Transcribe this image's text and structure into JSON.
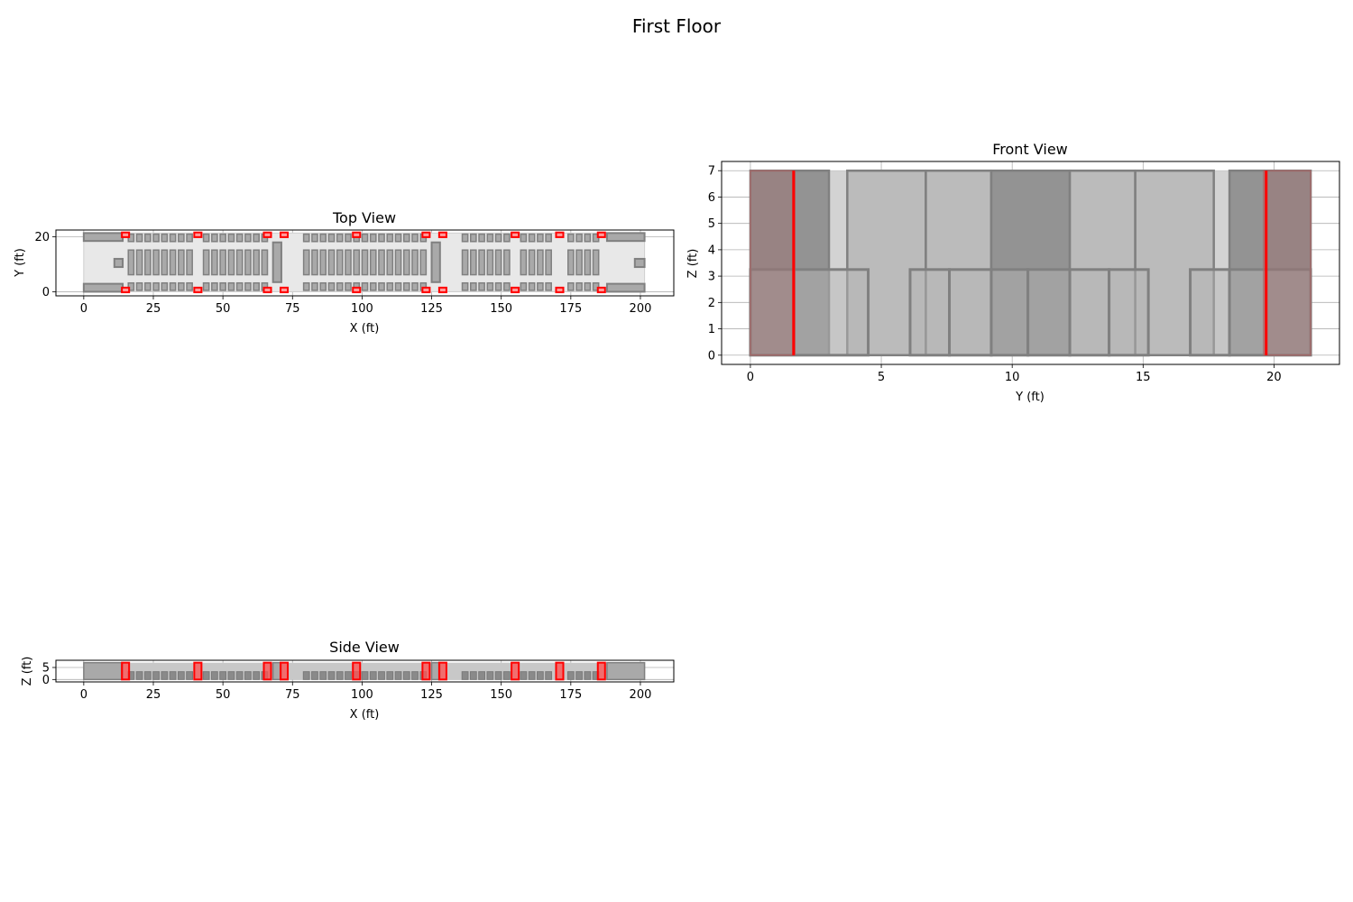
{
  "figure": {
    "title": "First Floor"
  },
  "colors": {
    "seat_fill": "#a9a9a9",
    "seat_edge": "#808080",
    "door": "#ff0000",
    "cabin_fill": "#e8e8e8",
    "front_light": "#d3d3d3",
    "front_mid": "#b5b5b5",
    "front_dark": "#8c8c8c",
    "grid": "#b0b0b0"
  },
  "views": {
    "top": {
      "title": "Top View",
      "xlabel": "X (ft)",
      "ylabel": "Y (ft)",
      "xticks": [
        "0",
        "25",
        "50",
        "75",
        "100",
        "125",
        "150",
        "175",
        "200"
      ],
      "yticks": [
        "0",
        "20"
      ]
    },
    "front": {
      "title": "Front View",
      "xlabel": "Y (ft)",
      "ylabel": "Z (ft)",
      "xticks": [
        "0",
        "5",
        "10",
        "15",
        "20"
      ],
      "yticks": [
        "0",
        "1",
        "2",
        "3",
        "4",
        "5",
        "6",
        "7"
      ]
    },
    "side": {
      "title": "Side View",
      "xlabel": "X (ft)",
      "ylabel": "Z (ft)",
      "xticks": [
        "0",
        "25",
        "50",
        "75",
        "100",
        "125",
        "150",
        "175",
        "200"
      ],
      "yticks": [
        "0",
        "5"
      ]
    }
  },
  "chart_data": [
    {
      "type": "layout_top",
      "title": "Top View",
      "xlabel": "X (ft)",
      "ylabel": "Y (ft)",
      "xlim": [
        -10,
        212
      ],
      "ylim": [
        -1.5,
        22.5
      ],
      "cabin": {
        "x": [
          0,
          201.5
        ],
        "y": [
          0,
          21.4
        ]
      },
      "seat_columns_x": [
        17,
        20,
        23,
        26,
        29,
        32,
        35,
        38,
        44,
        47,
        50,
        53,
        56,
        59,
        62,
        65,
        80,
        83,
        86,
        89,
        92,
        95,
        98,
        101,
        104,
        107,
        110,
        113,
        116,
        119,
        122,
        137,
        140,
        143,
        146,
        149,
        152,
        158,
        161,
        164,
        167,
        175,
        178,
        181,
        184
      ],
      "seat_bands_y": [
        [
          0.5,
          3.2
        ],
        [
          6.2,
          15.2
        ],
        [
          18.3,
          21
        ]
      ],
      "doors_x": [
        15,
        41,
        66,
        72,
        98,
        123,
        129,
        155,
        171,
        186
      ],
      "galleys": [
        {
          "x": [
            0,
            14
          ],
          "y": [
            18.5,
            21.4
          ]
        },
        {
          "x": [
            0,
            14
          ],
          "y": [
            0,
            2.9
          ]
        },
        {
          "x": [
            11,
            14
          ],
          "y": [
            9,
            12
          ]
        },
        {
          "x": [
            68,
            71
          ],
          "y": [
            3.5,
            18
          ]
        },
        {
          "x": [
            125,
            128
          ],
          "y": [
            3.5,
            18
          ]
        },
        {
          "x": [
            188,
            201.5
          ],
          "y": [
            18.5,
            21.4
          ]
        },
        {
          "x": [
            188,
            201.5
          ],
          "y": [
            0,
            2.9
          ]
        },
        {
          "x": [
            198,
            201.5
          ],
          "y": [
            9,
            12
          ]
        }
      ]
    },
    {
      "type": "layout_front",
      "title": "Front View",
      "xlabel": "Y (ft)",
      "ylabel": "Z (ft)",
      "xlim": [
        -1.1,
        22.5
      ],
      "ylim": [
        -0.35,
        7.35
      ],
      "cabin": {
        "y": [
          0,
          21.4
        ],
        "z": [
          0,
          7
        ]
      },
      "tall_blocks": [
        [
          0,
          3
        ],
        [
          3.7,
          6.7
        ],
        [
          6.7,
          9.2
        ],
        [
          9.2,
          12.2
        ],
        [
          12.2,
          14.7
        ],
        [
          14.7,
          17.7
        ],
        [
          18.3,
          21.4
        ]
      ],
      "seat_blocks": [
        [
          0,
          4.5
        ],
        [
          6.1,
          7.6
        ],
        [
          7.6,
          9.2
        ],
        [
          9.2,
          10.6
        ],
        [
          10.6,
          12.2
        ],
        [
          12.2,
          13.7
        ],
        [
          13.7,
          15.2
        ],
        [
          16.8,
          18.3
        ],
        [
          18.3,
          21.4
        ]
      ],
      "seat_height": 3.25,
      "doors_y": [
        1.65,
        19.7
      ],
      "door_spans": [
        [
          0,
          1.7
        ],
        [
          19.6,
          21.4
        ]
      ]
    },
    {
      "type": "layout_side",
      "title": "Side View",
      "xlabel": "X (ft)",
      "ylabel": "Z (ft)",
      "xlim": [
        -10,
        212
      ],
      "ylim": [
        -1,
        8
      ],
      "cabin": {
        "x": [
          0,
          201.5
        ],
        "z": [
          0,
          7
        ]
      },
      "seat_height": 3.25,
      "doors_x": [
        15,
        41,
        66,
        72,
        98,
        123,
        129,
        155,
        171,
        186
      ]
    }
  ]
}
